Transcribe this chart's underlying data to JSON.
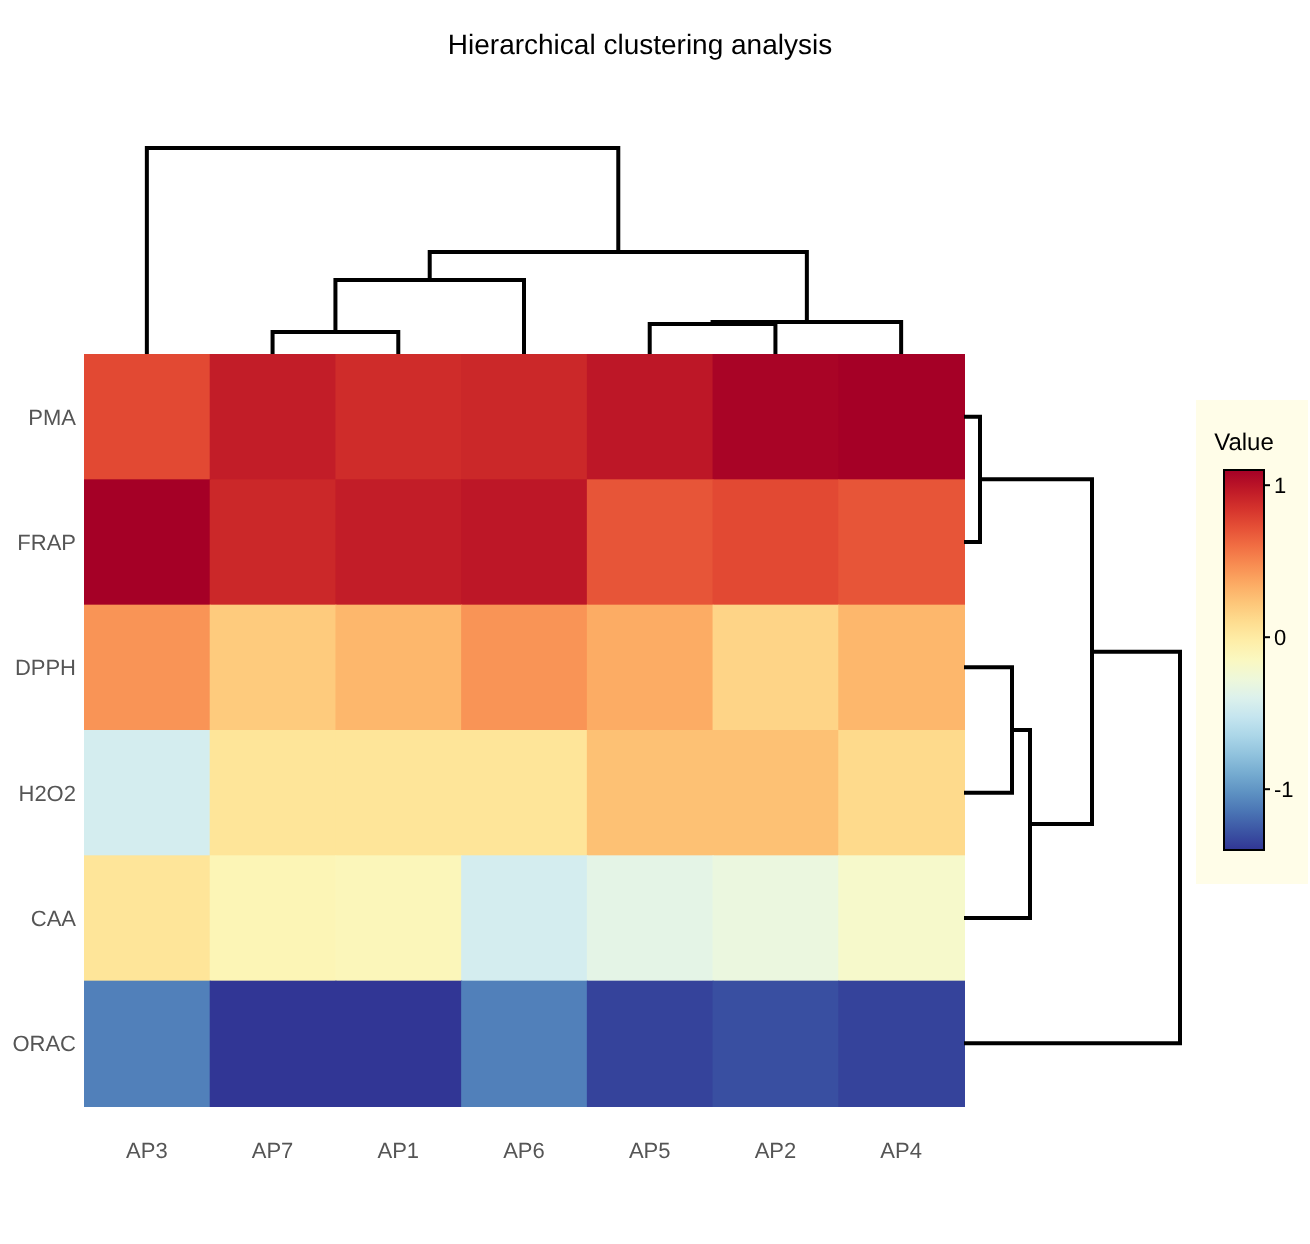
{
  "chart_data": {
    "type": "heatmap",
    "title": "Hierarchical clustering analysis",
    "legend_title": "Value",
    "categories": [
      "AP3",
      "AP7",
      "AP1",
      "AP6",
      "AP5",
      "AP2",
      "AP4"
    ],
    "y_categories": [
      "PMA",
      "FRAP",
      "DPPH",
      "H2O2",
      "CAA",
      "ORAC"
    ],
    "cells": [
      [
        0.75,
        0.95,
        0.88,
        0.9,
        0.98,
        1.08,
        1.1
      ],
      [
        1.1,
        0.9,
        0.95,
        0.98,
        0.7,
        0.75,
        0.7
      ],
      [
        0.45,
        0.2,
        0.3,
        0.45,
        0.35,
        0.15,
        0.3
      ],
      [
        -0.45,
        0.05,
        0.05,
        0.05,
        0.25,
        0.25,
        0.12
      ],
      [
        0.05,
        -0.1,
        -0.12,
        -0.45,
        -0.35,
        -0.3,
        -0.2
      ],
      [
        -1.1,
        -1.4,
        -1.4,
        -1.1,
        -1.35,
        -1.3,
        -1.35
      ]
    ],
    "clim": [
      -1.4,
      1.1
    ],
    "cticks": [
      1,
      0,
      -1
    ]
  }
}
